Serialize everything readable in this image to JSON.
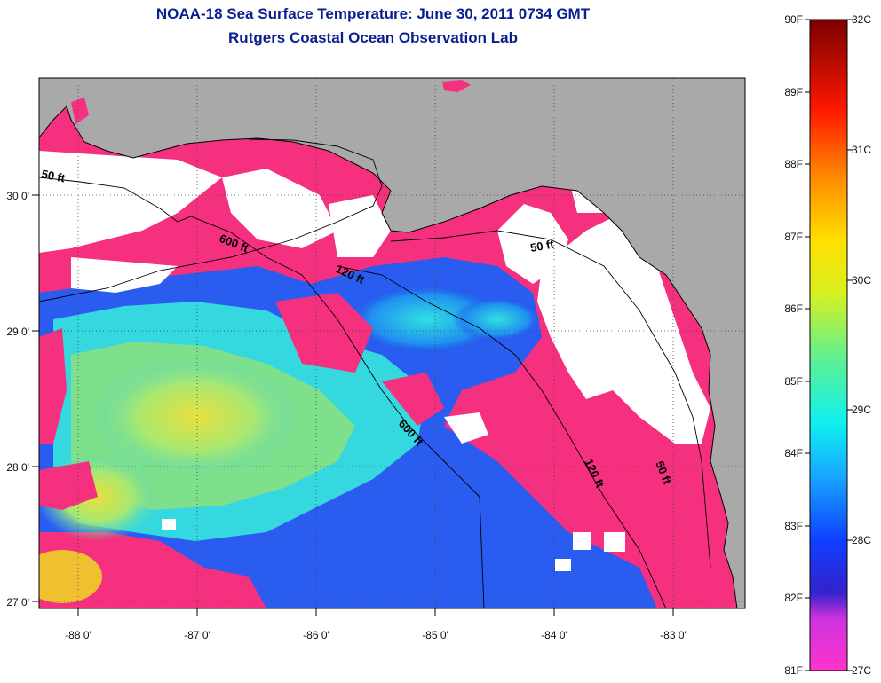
{
  "title": "NOAA-18 Sea Surface Temperature:  June 30, 2011 0734 GMT",
  "subtitle": "Rutgers Coastal Ocean Observation Lab",
  "axes": {
    "lon_ticks": [
      "-88 0'",
      "-87 0'",
      "-86 0'",
      "-85 0'",
      "-84 0'",
      "-83 0'"
    ],
    "lat_ticks": [
      "30 0'",
      "29 0'",
      "28 0'",
      "27 0'"
    ]
  },
  "contours": {
    "c50_west": "50 ft",
    "c600_north": "600 ft",
    "c120_north": "120 ft",
    "c50_east": "50 ft",
    "c600_south": "600 ft",
    "c120_south": "120 ft",
    "c50_south": "50 ft"
  },
  "colorbar": {
    "fahrenheit": [
      "90F",
      "89F",
      "88F",
      "87F",
      "86F",
      "85F",
      "84F",
      "83F",
      "82F",
      "81F"
    ],
    "celsius": [
      "32C",
      "31C",
      "30C",
      "29C",
      "28C",
      "27C"
    ]
  },
  "colors": {
    "land": "#a9a9a9",
    "cloud": "#ffffff",
    "warm_pink": "#f5307f",
    "title_blue": "#0a1f8f"
  }
}
